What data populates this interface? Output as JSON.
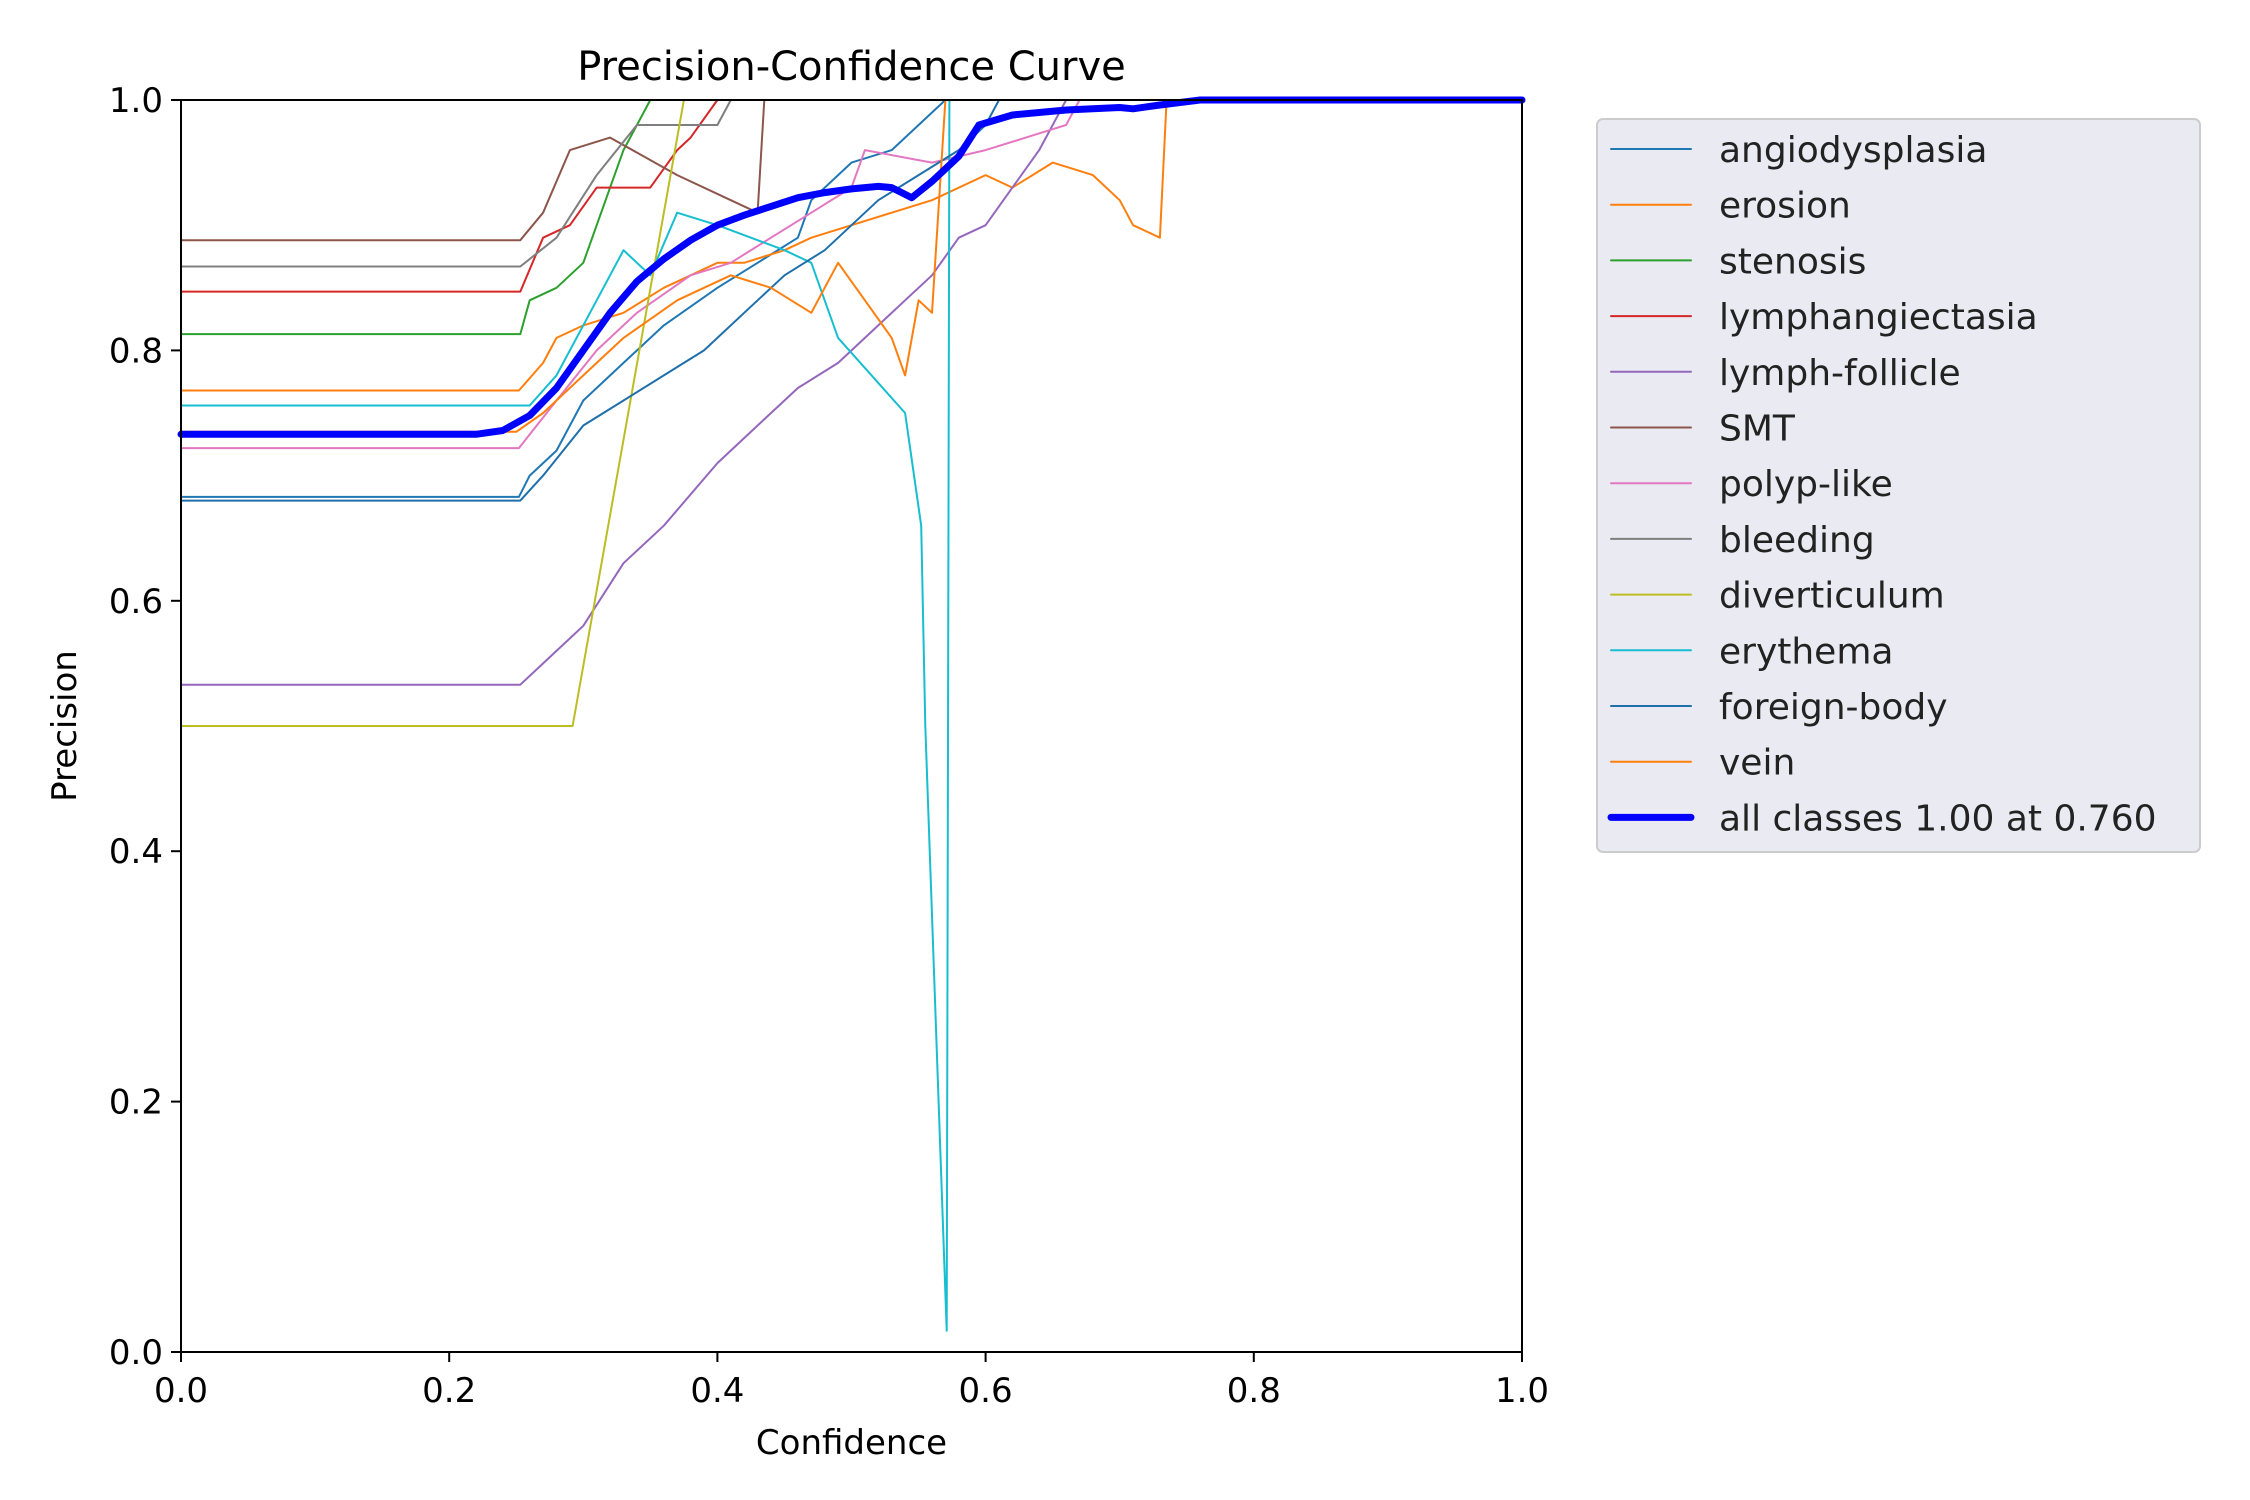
{
  "chart_data": {
    "type": "line",
    "title": "Precision-Confidence Curve",
    "xlabel": "Confidence",
    "ylabel": "Precision",
    "xlim": [
      0,
      1
    ],
    "ylim": [
      0,
      1
    ],
    "xticks": [
      "0.0",
      "0.2",
      "0.4",
      "0.6",
      "0.8",
      "1.0"
    ],
    "yticks": [
      "0.0",
      "0.2",
      "0.4",
      "0.6",
      "0.8",
      "1.0"
    ],
    "grid": false,
    "legend_placement": "outside-upper-right",
    "series": [
      {
        "name": "angiodysplasia",
        "color": "#1f77b4",
        "width": 2,
        "points": [
          [
            0,
            0.683
          ],
          [
            0.252,
            0.683
          ],
          [
            0.26,
            0.7
          ],
          [
            0.28,
            0.72
          ],
          [
            0.3,
            0.76
          ],
          [
            0.33,
            0.79
          ],
          [
            0.36,
            0.82
          ],
          [
            0.4,
            0.85
          ],
          [
            0.43,
            0.87
          ],
          [
            0.46,
            0.89
          ],
          [
            0.47,
            0.92
          ],
          [
            0.5,
            0.95
          ],
          [
            0.53,
            0.96
          ],
          [
            0.55,
            0.98
          ],
          [
            0.57,
            1.0
          ],
          [
            1.0,
            1.0
          ]
        ]
      },
      {
        "name": "erosion",
        "color": "#ff7f0e",
        "width": 2,
        "points": [
          [
            0,
            0.768
          ],
          [
            0.252,
            0.768
          ],
          [
            0.27,
            0.79
          ],
          [
            0.28,
            0.81
          ],
          [
            0.3,
            0.82
          ],
          [
            0.33,
            0.83
          ],
          [
            0.36,
            0.85
          ],
          [
            0.38,
            0.86
          ],
          [
            0.4,
            0.87
          ],
          [
            0.42,
            0.87
          ],
          [
            0.45,
            0.88
          ],
          [
            0.47,
            0.89
          ],
          [
            0.5,
            0.9
          ],
          [
            0.53,
            0.91
          ],
          [
            0.56,
            0.92
          ],
          [
            0.6,
            0.94
          ],
          [
            0.62,
            0.93
          ],
          [
            0.65,
            0.95
          ],
          [
            0.68,
            0.94
          ],
          [
            0.7,
            0.92
          ],
          [
            0.71,
            0.9
          ],
          [
            0.73,
            0.89
          ],
          [
            0.735,
            1.0
          ],
          [
            1.0,
            1.0
          ]
        ]
      },
      {
        "name": "stenosis",
        "color": "#2ca02c",
        "width": 2,
        "points": [
          [
            0,
            0.813
          ],
          [
            0.253,
            0.813
          ],
          [
            0.26,
            0.84
          ],
          [
            0.28,
            0.85
          ],
          [
            0.3,
            0.87
          ],
          [
            0.32,
            0.93
          ],
          [
            0.33,
            0.96
          ],
          [
            0.35,
            1.0
          ],
          [
            1.0,
            1.0
          ]
        ]
      },
      {
        "name": "lymphangiectasia",
        "color": "#d62728",
        "width": 2,
        "points": [
          [
            0,
            0.847
          ],
          [
            0.253,
            0.847
          ],
          [
            0.27,
            0.89
          ],
          [
            0.29,
            0.9
          ],
          [
            0.31,
            0.93
          ],
          [
            0.35,
            0.93
          ],
          [
            0.37,
            0.96
          ],
          [
            0.38,
            0.97
          ],
          [
            0.4,
            1.0
          ],
          [
            1.0,
            1.0
          ]
        ]
      },
      {
        "name": "lymph-follicle",
        "color": "#9467bd",
        "width": 2,
        "points": [
          [
            0,
            0.533
          ],
          [
            0.253,
            0.533
          ],
          [
            0.27,
            0.55
          ],
          [
            0.3,
            0.58
          ],
          [
            0.33,
            0.63
          ],
          [
            0.36,
            0.66
          ],
          [
            0.4,
            0.71
          ],
          [
            0.43,
            0.74
          ],
          [
            0.46,
            0.77
          ],
          [
            0.49,
            0.79
          ],
          [
            0.51,
            0.81
          ],
          [
            0.54,
            0.84
          ],
          [
            0.56,
            0.86
          ],
          [
            0.58,
            0.89
          ],
          [
            0.6,
            0.9
          ],
          [
            0.62,
            0.93
          ],
          [
            0.64,
            0.96
          ],
          [
            0.65,
            0.98
          ],
          [
            0.66,
            1.0
          ],
          [
            1.0,
            1.0
          ]
        ]
      },
      {
        "name": "SMT",
        "color": "#8c564b",
        "width": 2,
        "points": [
          [
            0,
            0.888
          ],
          [
            0.253,
            0.888
          ],
          [
            0.27,
            0.91
          ],
          [
            0.29,
            0.96
          ],
          [
            0.32,
            0.97
          ],
          [
            0.37,
            0.94
          ],
          [
            0.41,
            0.92
          ],
          [
            0.43,
            0.91
          ],
          [
            0.435,
            1.0
          ],
          [
            1.0,
            1.0
          ]
        ]
      },
      {
        "name": "polyp-like",
        "color": "#e377c2",
        "width": 2,
        "points": [
          [
            0,
            0.722
          ],
          [
            0.252,
            0.722
          ],
          [
            0.28,
            0.76
          ],
          [
            0.31,
            0.8
          ],
          [
            0.34,
            0.83
          ],
          [
            0.38,
            0.86
          ],
          [
            0.41,
            0.87
          ],
          [
            0.44,
            0.89
          ],
          [
            0.47,
            0.91
          ],
          [
            0.5,
            0.93
          ],
          [
            0.51,
            0.96
          ],
          [
            0.56,
            0.95
          ],
          [
            0.6,
            0.96
          ],
          [
            0.63,
            0.97
          ],
          [
            0.66,
            0.98
          ],
          [
            0.67,
            1.0
          ],
          [
            1.0,
            1.0
          ]
        ]
      },
      {
        "name": "bleeding",
        "color": "#7f7f7f",
        "width": 2,
        "points": [
          [
            0,
            0.867
          ],
          [
            0.253,
            0.867
          ],
          [
            0.28,
            0.89
          ],
          [
            0.31,
            0.94
          ],
          [
            0.34,
            0.98
          ],
          [
            0.37,
            0.98
          ],
          [
            0.4,
            0.98
          ],
          [
            0.41,
            1.0
          ],
          [
            1.0,
            1.0
          ]
        ]
      },
      {
        "name": "diverticulum",
        "color": "#bcbd22",
        "width": 2,
        "points": [
          [
            0,
            0.5
          ],
          [
            0.292,
            0.5
          ],
          [
            0.375,
            1.0
          ],
          [
            1.0,
            1.0
          ]
        ]
      },
      {
        "name": "erythema",
        "color": "#17becf",
        "width": 2,
        "points": [
          [
            0,
            0.756
          ],
          [
            0.26,
            0.756
          ],
          [
            0.28,
            0.78
          ],
          [
            0.31,
            0.84
          ],
          [
            0.33,
            0.88
          ],
          [
            0.35,
            0.86
          ],
          [
            0.37,
            0.91
          ],
          [
            0.4,
            0.9
          ],
          [
            0.45,
            0.88
          ],
          [
            0.47,
            0.87
          ],
          [
            0.49,
            0.81
          ],
          [
            0.54,
            0.75
          ],
          [
            0.552,
            0.66
          ],
          [
            0.555,
            0.5
          ],
          [
            0.571,
            0.017
          ],
          [
            0.573,
            1.0
          ],
          [
            1.0,
            1.0
          ]
        ]
      },
      {
        "name": "foreign-body",
        "color": "#1f6fab",
        "width": 2,
        "points": [
          [
            0,
            0.68
          ],
          [
            0.253,
            0.68
          ],
          [
            0.27,
            0.7
          ],
          [
            0.3,
            0.74
          ],
          [
            0.33,
            0.76
          ],
          [
            0.36,
            0.78
          ],
          [
            0.39,
            0.8
          ],
          [
            0.42,
            0.83
          ],
          [
            0.45,
            0.86
          ],
          [
            0.48,
            0.88
          ],
          [
            0.5,
            0.9
          ],
          [
            0.52,
            0.92
          ],
          [
            0.55,
            0.94
          ],
          [
            0.58,
            0.96
          ],
          [
            0.6,
            0.98
          ],
          [
            0.61,
            1.0
          ],
          [
            1.0,
            1.0
          ]
        ]
      },
      {
        "name": "vein",
        "color": "#ff7f0e",
        "width": 2,
        "points": [
          [
            0,
            0.735
          ],
          [
            0.25,
            0.735
          ],
          [
            0.27,
            0.75
          ],
          [
            0.3,
            0.78
          ],
          [
            0.33,
            0.81
          ],
          [
            0.37,
            0.84
          ],
          [
            0.41,
            0.86
          ],
          [
            0.44,
            0.85
          ],
          [
            0.47,
            0.83
          ],
          [
            0.49,
            0.87
          ],
          [
            0.51,
            0.84
          ],
          [
            0.53,
            0.81
          ],
          [
            0.54,
            0.78
          ],
          [
            0.55,
            0.84
          ],
          [
            0.56,
            0.83
          ],
          [
            0.57,
            1.0
          ],
          [
            1.0,
            1.0
          ]
        ]
      },
      {
        "name": "all classes 1.00 at 0.760",
        "color": "#0000ff",
        "width": 7,
        "points": [
          [
            0,
            0.733
          ],
          [
            0.22,
            0.733
          ],
          [
            0.24,
            0.736
          ],
          [
            0.26,
            0.748
          ],
          [
            0.28,
            0.77
          ],
          [
            0.3,
            0.8
          ],
          [
            0.32,
            0.83
          ],
          [
            0.34,
            0.855
          ],
          [
            0.36,
            0.873
          ],
          [
            0.38,
            0.888
          ],
          [
            0.4,
            0.9
          ],
          [
            0.42,
            0.908
          ],
          [
            0.44,
            0.915
          ],
          [
            0.46,
            0.922
          ],
          [
            0.48,
            0.926
          ],
          [
            0.5,
            0.929
          ],
          [
            0.52,
            0.931
          ],
          [
            0.53,
            0.93
          ],
          [
            0.545,
            0.922
          ],
          [
            0.56,
            0.935
          ],
          [
            0.58,
            0.955
          ],
          [
            0.595,
            0.98
          ],
          [
            0.62,
            0.988
          ],
          [
            0.66,
            0.992
          ],
          [
            0.7,
            0.994
          ],
          [
            0.71,
            0.993
          ],
          [
            0.73,
            0.996
          ],
          [
            0.76,
            1.0
          ],
          [
            1.0,
            1.0
          ]
        ]
      }
    ]
  }
}
